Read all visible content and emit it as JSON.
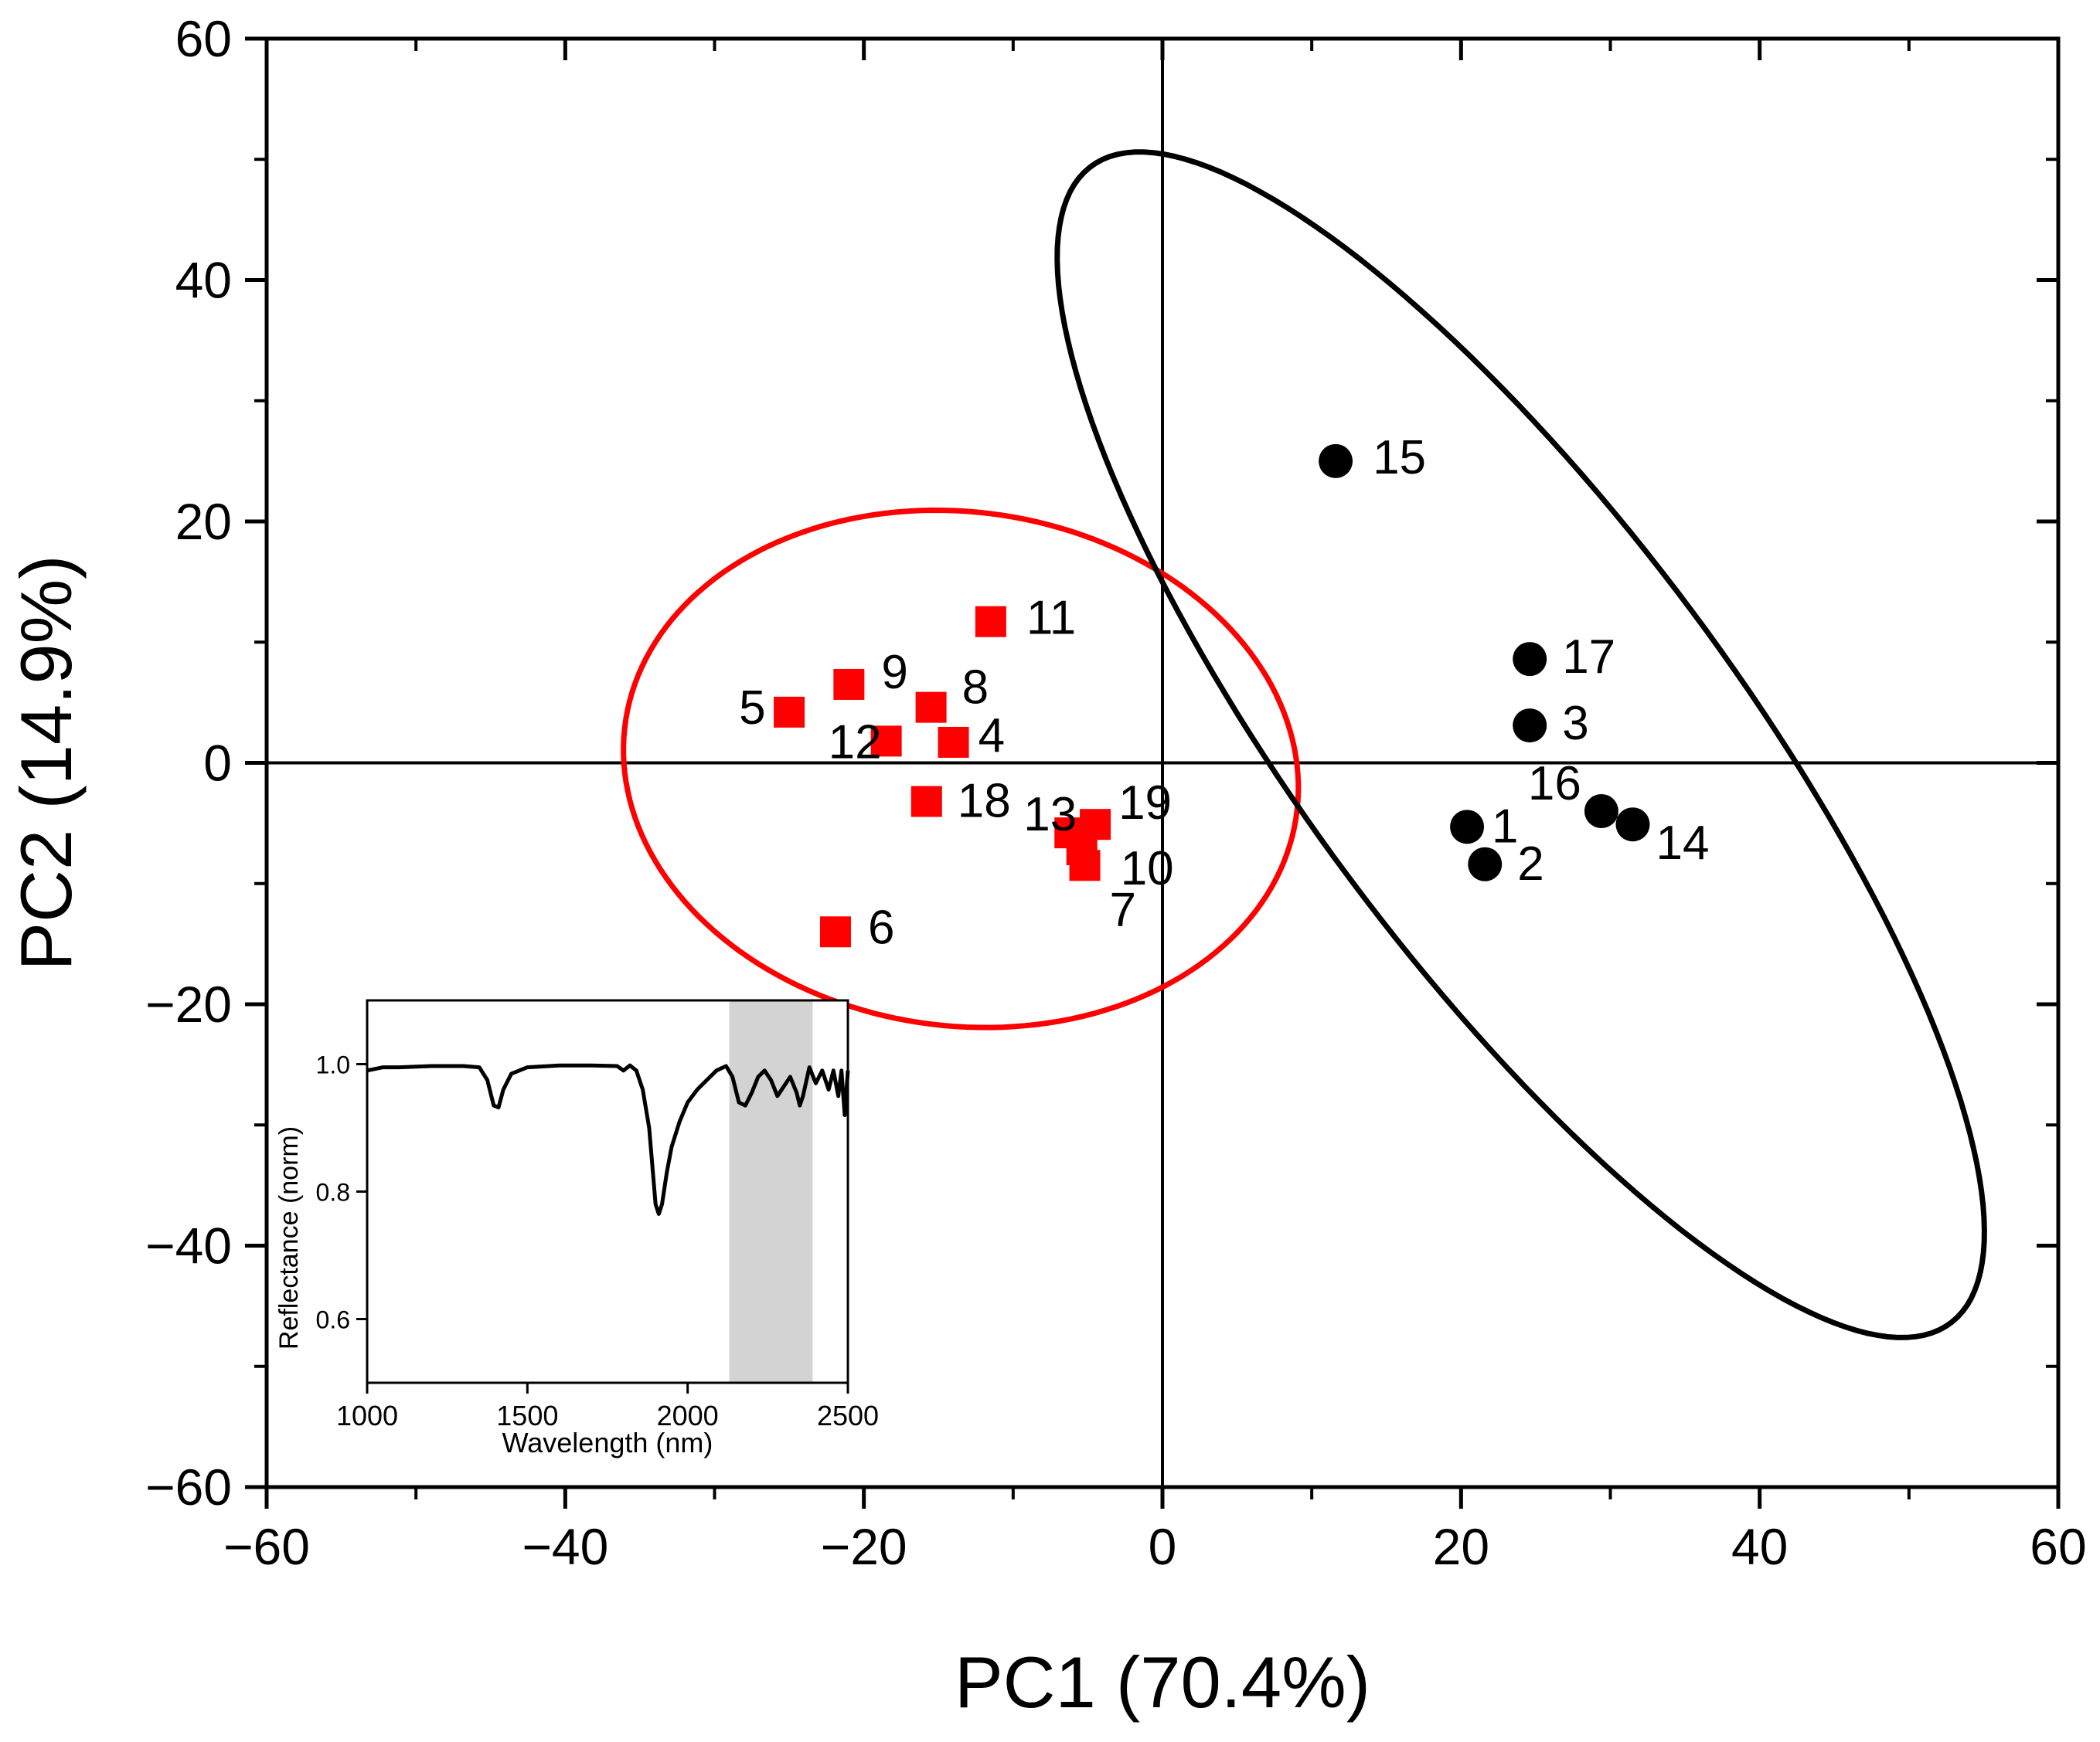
{
  "chart_data": [
    {
      "type": "scatter",
      "title": "",
      "xlabel": "PC1 (70.4%)",
      "ylabel": "PC2 (14.9%)",
      "xlim": [
        -60,
        60
      ],
      "ylim": [
        -60,
        60
      ],
      "xticks": [
        -60,
        -40,
        -20,
        0,
        20,
        40,
        60
      ],
      "yticks": [
        -60,
        -40,
        -20,
        0,
        20,
        40,
        60
      ],
      "xtick_labels": [
        "−60",
        "−40",
        "−20",
        "0",
        "20",
        "40",
        "60"
      ],
      "ytick_labels": [
        "−60",
        "−40",
        "−20",
        "0",
        "20",
        "40",
        "60"
      ],
      "grid": false,
      "reference_lines": {
        "x": 0,
        "y": 0
      },
      "series": [
        {
          "name": "group-red",
          "marker": "square",
          "color": "#ff0000",
          "points": [
            {
              "label": "4",
              "x": -14,
              "y": 1.7
            },
            {
              "label": "5",
              "x": -25,
              "y": 4.2
            },
            {
              "label": "6",
              "x": -21.9,
              "y": -14
            },
            {
              "label": "7",
              "x": -5.2,
              "y": -8.5
            },
            {
              "label": "8",
              "x": -15.5,
              "y": 4.6
            },
            {
              "label": "9",
              "x": -21,
              "y": 6.5
            },
            {
              "label": "10",
              "x": -5.4,
              "y": -7.2
            },
            {
              "label": "11",
              "x": -11.5,
              "y": 11.7
            },
            {
              "label": "12",
              "x": -18.5,
              "y": 1.8
            },
            {
              "label": "13",
              "x": -6.2,
              "y": -5.8
            },
            {
              "label": "18",
              "x": -15.8,
              "y": -3.2
            },
            {
              "label": "19",
              "x": -4.5,
              "y": -5.1
            }
          ]
        },
        {
          "name": "group-black",
          "marker": "circle",
          "color": "#000000",
          "points": [
            {
              "label": "1",
              "x": 20.4,
              "y": -5.3
            },
            {
              "label": "2",
              "x": 21.6,
              "y": -8.4
            },
            {
              "label": "3",
              "x": 24.6,
              "y": 3.1
            },
            {
              "label": "14",
              "x": 31.5,
              "y": -5.1
            },
            {
              "label": "15",
              "x": 11.6,
              "y": 25
            },
            {
              "label": "16",
              "x": 29.4,
              "y": -4
            },
            {
              "label": "17",
              "x": 24.6,
              "y": 8.6
            }
          ]
        }
      ],
      "confidence_ellipses": [
        {
          "name": "ellipse-red",
          "color": "#ff0000",
          "cx": -13.5,
          "cy": -0.5,
          "rx": 23,
          "ry": 21,
          "rotation_deg": -27
        },
        {
          "name": "ellipse-black",
          "color": "#000000",
          "cx": 24,
          "cy": 1.5,
          "rx": 56,
          "ry": 15.5,
          "rotation_deg": -60
        }
      ]
    },
    {
      "type": "line",
      "title": "",
      "xlabel": "Wavelength (nm)",
      "ylabel": "Reflectance (norm)",
      "xlim": [
        1000,
        2500
      ],
      "ylim": [
        0.5,
        1.1
      ],
      "xticks": [
        1000,
        1500,
        2000,
        2500
      ],
      "yticks": [
        0.6,
        0.8,
        1.0
      ],
      "xtick_labels": [
        "1000",
        "1500",
        "2000",
        "2500"
      ],
      "ytick_labels": [
        "0.6",
        "0.8",
        "1.0"
      ],
      "highlight_band": [
        2130,
        2390
      ],
      "highlight_color": "#d3d3d3",
      "series": [
        {
          "name": "reflectance-spectrum",
          "color": "#000000",
          "x": [
            1000,
            1050,
            1100,
            1200,
            1300,
            1350,
            1375,
            1395,
            1410,
            1425,
            1450,
            1500,
            1600,
            1700,
            1780,
            1800,
            1820,
            1840,
            1860,
            1880,
            1900,
            1910,
            1920,
            1935,
            1950,
            1975,
            2000,
            2030,
            2060,
            2090,
            2120,
            2140,
            2160,
            2180,
            2200,
            2220,
            2240,
            2260,
            2280,
            2300,
            2320,
            2340,
            2350,
            2360,
            2380,
            2400,
            2420,
            2440,
            2455,
            2470,
            2480,
            2490,
            2500
          ],
          "y": [
            0.99,
            0.995,
            0.995,
            0.997,
            0.997,
            0.995,
            0.975,
            0.935,
            0.932,
            0.96,
            0.985,
            0.995,
            0.998,
            0.998,
            0.997,
            0.99,
            0.998,
            0.99,
            0.96,
            0.9,
            0.78,
            0.765,
            0.78,
            0.83,
            0.87,
            0.91,
            0.94,
            0.96,
            0.975,
            0.99,
            0.997,
            0.98,
            0.94,
            0.935,
            0.955,
            0.98,
            0.99,
            0.975,
            0.95,
            0.965,
            0.98,
            0.955,
            0.935,
            0.95,
            0.995,
            0.97,
            0.99,
            0.96,
            0.99,
            0.95,
            0.99,
            0.92,
            0.99
          ]
        }
      ]
    }
  ]
}
